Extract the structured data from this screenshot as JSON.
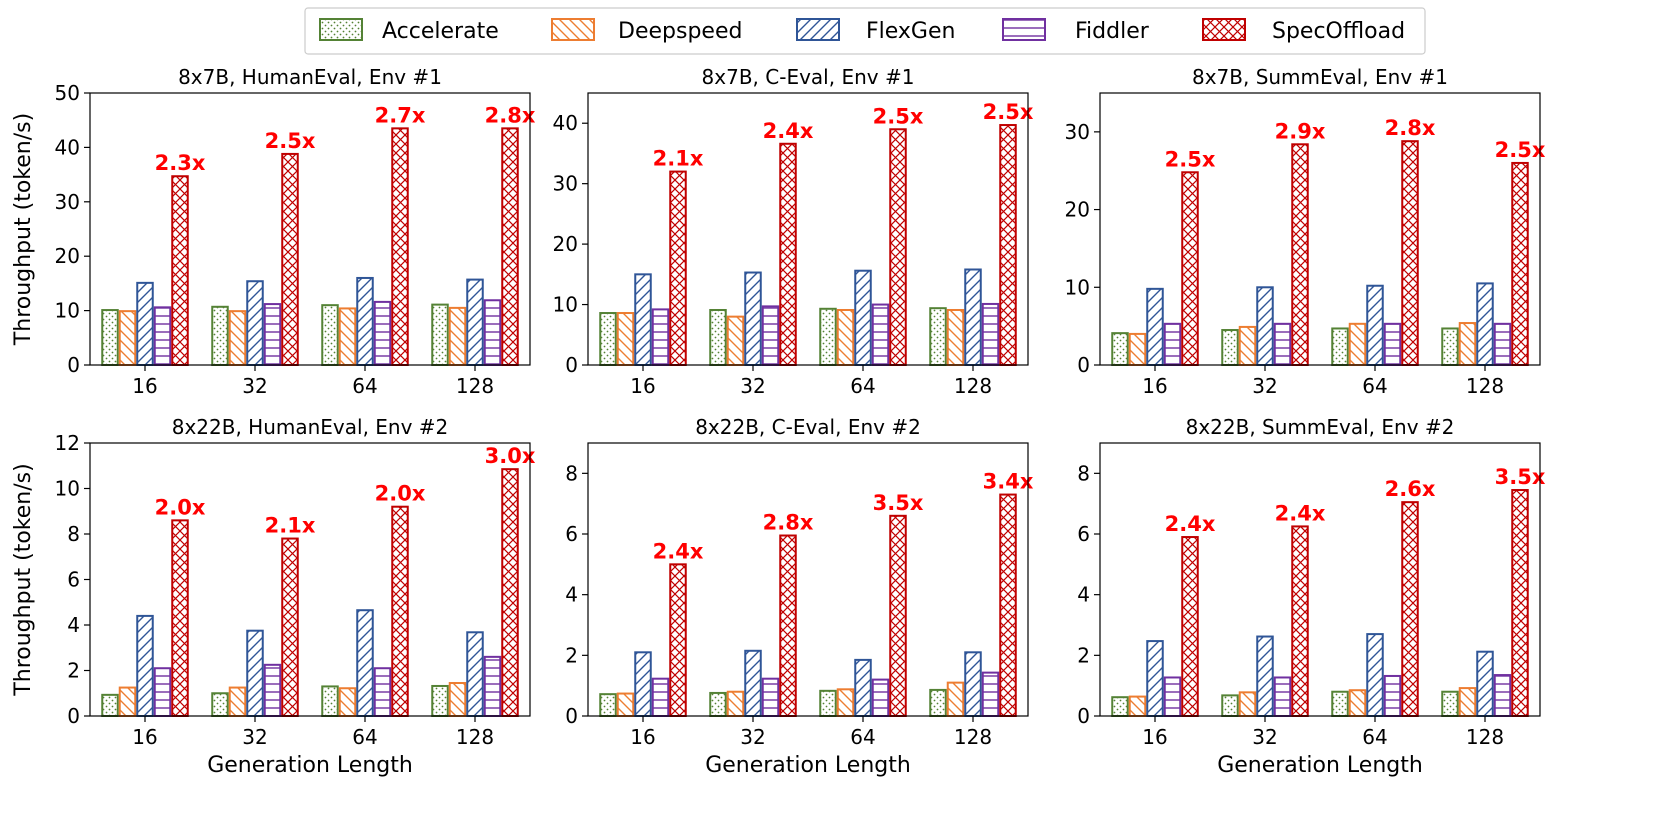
{
  "legend": {
    "methods": [
      {
        "key": "accelerate",
        "name": "Accelerate",
        "color": "#548235",
        "pattern": "dots"
      },
      {
        "key": "deepspeed",
        "name": "Deepspeed",
        "color": "#ed7d31",
        "pattern": "backslash"
      },
      {
        "key": "flexgen",
        "name": "FlexGen",
        "color": "#2f5597",
        "pattern": "slash"
      },
      {
        "key": "fiddler",
        "name": "Fiddler",
        "color": "#7030a0",
        "pattern": "hlines"
      },
      {
        "key": "specoffload",
        "name": "SpecOffload",
        "color": "#c00000",
        "pattern": "cross"
      }
    ]
  },
  "chart_data": [
    {
      "type": "bar",
      "title": "8x7B, HumanEval, Env #1",
      "xlabel": "",
      "ylabel": "Throughput (token/s)",
      "ylim": [
        0,
        50
      ],
      "yticks": [
        "0",
        "10",
        "20",
        "30",
        "40",
        "50"
      ],
      "categories": [
        "16",
        "32",
        "64",
        "128"
      ],
      "series": [
        {
          "name": "Accelerate",
          "values": [
            10.1,
            10.7,
            11.0,
            11.1
          ]
        },
        {
          "name": "Deepspeed",
          "values": [
            9.9,
            9.9,
            10.4,
            10.5
          ]
        },
        {
          "name": "FlexGen",
          "values": [
            15.1,
            15.4,
            16.0,
            15.7
          ]
        },
        {
          "name": "Fiddler",
          "values": [
            10.6,
            11.2,
            11.6,
            11.9
          ]
        },
        {
          "name": "SpecOffload",
          "values": [
            34.7,
            38.8,
            43.5,
            43.5
          ]
        }
      ],
      "speedups": [
        "2.3x",
        "2.5x",
        "2.7x",
        "2.8x"
      ]
    },
    {
      "type": "bar",
      "title": "8x7B, C-Eval, Env #1",
      "xlabel": "",
      "ylabel": "",
      "ylim": [
        0,
        45
      ],
      "yticks": [
        "0",
        "10",
        "20",
        "30",
        "40"
      ],
      "categories": [
        "16",
        "32",
        "64",
        "128"
      ],
      "series": [
        {
          "name": "Accelerate",
          "values": [
            8.6,
            9.1,
            9.3,
            9.4
          ]
        },
        {
          "name": "Deepspeed",
          "values": [
            8.6,
            8.0,
            9.1,
            9.1
          ]
        },
        {
          "name": "FlexGen",
          "values": [
            15.0,
            15.3,
            15.6,
            15.8
          ]
        },
        {
          "name": "Fiddler",
          "values": [
            9.2,
            9.7,
            10.0,
            10.1
          ]
        },
        {
          "name": "SpecOffload",
          "values": [
            32.0,
            36.6,
            39.0,
            39.7
          ]
        }
      ],
      "speedups": [
        "2.1x",
        "2.4x",
        "2.5x",
        "2.5x"
      ]
    },
    {
      "type": "bar",
      "title": "8x7B, SummEval, Env #1",
      "xlabel": "",
      "ylabel": "",
      "ylim": [
        0,
        35
      ],
      "yticks": [
        "0",
        "10",
        "20",
        "30"
      ],
      "categories": [
        "16",
        "32",
        "64",
        "128"
      ],
      "series": [
        {
          "name": "Accelerate",
          "values": [
            4.1,
            4.5,
            4.7,
            4.7
          ]
        },
        {
          "name": "Deepspeed",
          "values": [
            4.0,
            4.9,
            5.3,
            5.4
          ]
        },
        {
          "name": "FlexGen",
          "values": [
            9.8,
            10.0,
            10.2,
            10.5
          ]
        },
        {
          "name": "Fiddler",
          "values": [
            5.3,
            5.3,
            5.3,
            5.3
          ]
        },
        {
          "name": "SpecOffload",
          "values": [
            24.8,
            28.4,
            28.8,
            26.0
          ]
        }
      ],
      "speedups": [
        "2.5x",
        "2.9x",
        "2.8x",
        "2.5x"
      ]
    },
    {
      "type": "bar",
      "title": "8x22B, HumanEval, Env #2",
      "xlabel": "Generation Length",
      "ylabel": "Throughput (token/s)",
      "ylim": [
        0,
        12
      ],
      "yticks": [
        "0",
        "2",
        "4",
        "6",
        "8",
        "10",
        "12"
      ],
      "categories": [
        "16",
        "32",
        "64",
        "128"
      ],
      "series": [
        {
          "name": "Accelerate",
          "values": [
            0.93,
            1.0,
            1.3,
            1.32
          ]
        },
        {
          "name": "Deepspeed",
          "values": [
            1.25,
            1.25,
            1.22,
            1.45
          ]
        },
        {
          "name": "FlexGen",
          "values": [
            4.4,
            3.75,
            4.65,
            3.68
          ]
        },
        {
          "name": "Fiddler",
          "values": [
            2.1,
            2.25,
            2.1,
            2.6
          ]
        },
        {
          "name": "SpecOffload",
          "values": [
            8.6,
            7.8,
            9.2,
            10.85
          ]
        }
      ],
      "speedups": [
        "2.0x",
        "2.1x",
        "2.0x",
        "3.0x"
      ]
    },
    {
      "type": "bar",
      "title": "8x22B, C-Eval, Env #2",
      "xlabel": "Generation Length",
      "ylabel": "",
      "ylim": [
        0,
        9
      ],
      "yticks": [
        "0",
        "2",
        "4",
        "6",
        "8"
      ],
      "categories": [
        "16",
        "32",
        "64",
        "128"
      ],
      "series": [
        {
          "name": "Accelerate",
          "values": [
            0.72,
            0.76,
            0.83,
            0.86
          ]
        },
        {
          "name": "Deepspeed",
          "values": [
            0.74,
            0.8,
            0.88,
            1.1
          ]
        },
        {
          "name": "FlexGen",
          "values": [
            2.1,
            2.15,
            1.85,
            2.1
          ]
        },
        {
          "name": "Fiddler",
          "values": [
            1.23,
            1.23,
            1.2,
            1.43
          ]
        },
        {
          "name": "SpecOffload",
          "values": [
            5.0,
            5.95,
            6.6,
            7.3
          ]
        }
      ],
      "speedups": [
        "2.4x",
        "2.8x",
        "3.5x",
        "3.4x"
      ]
    },
    {
      "type": "bar",
      "title": "8x22B, SummEval, Env #2",
      "xlabel": "Generation Length",
      "ylabel": "",
      "ylim": [
        0,
        9
      ],
      "yticks": [
        "0",
        "2",
        "4",
        "6",
        "8"
      ],
      "categories": [
        "16",
        "32",
        "64",
        "128"
      ],
      "series": [
        {
          "name": "Accelerate",
          "values": [
            0.62,
            0.68,
            0.8,
            0.8
          ]
        },
        {
          "name": "Deepspeed",
          "values": [
            0.64,
            0.78,
            0.85,
            0.92
          ]
        },
        {
          "name": "FlexGen",
          "values": [
            2.47,
            2.62,
            2.7,
            2.12
          ]
        },
        {
          "name": "Fiddler",
          "values": [
            1.27,
            1.27,
            1.32,
            1.35
          ]
        },
        {
          "name": "SpecOffload",
          "values": [
            5.9,
            6.25,
            7.05,
            7.45
          ]
        }
      ],
      "speedups": [
        "2.4x",
        "2.4x",
        "2.6x",
        "3.5x"
      ]
    }
  ]
}
